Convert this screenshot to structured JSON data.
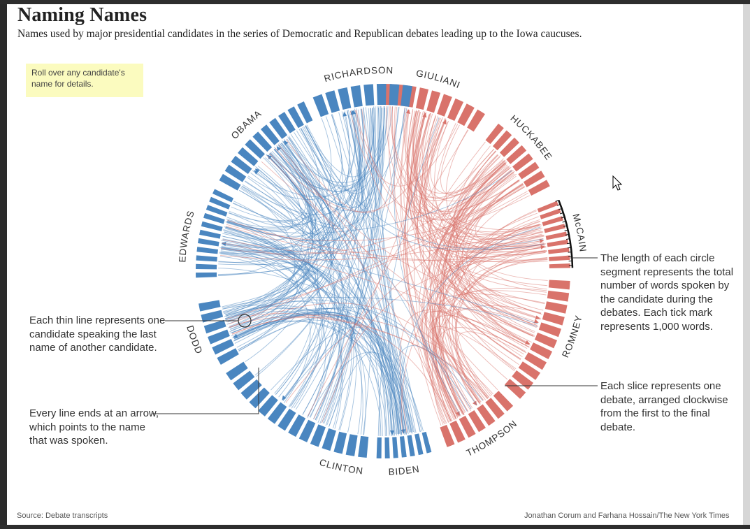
{
  "header": {
    "title": "Naming Names",
    "subtitle": "Names used by major presidential candidates in the series of Democratic and Republican debates leading up to the Iowa caucuses."
  },
  "hint": "Roll over any candidate's name for details.",
  "notes": {
    "segment_length": "The length of each circle segment represents the total number of words spoken by the candidate during the debates. Each tick mark represents 1,000 words.",
    "slice": "Each slice represents one debate, arranged clockwise from the first to the final debate.",
    "thin_line": "Each thin line represents one candidate speaking the last name of another candidate.",
    "arrow": "Every line ends at an arrow, which points to the name that was spoken."
  },
  "footer": {
    "source": "Source: Debate transcripts",
    "credit": "Jonathan Corum and Farhana Hossain/The New York Times"
  },
  "colors": {
    "democrat": "#4a86c0",
    "republican": "#d9736b",
    "hint_bg": "#fbfbbf"
  },
  "chart_data": {
    "type": "chord",
    "candidates": [
      {
        "name": "GIULIANI",
        "party": "republican",
        "slices": 9
      },
      {
        "name": "HUCKABEE",
        "party": "republican",
        "slices": 8
      },
      {
        "name": "McCAIN",
        "party": "republican",
        "slices": 9
      },
      {
        "name": "ROMNEY",
        "party": "republican",
        "slices": 11
      },
      {
        "name": "THOMPSON",
        "party": "republican",
        "slices": 7
      },
      {
        "name": "BIDEN",
        "party": "democrat",
        "slices": 7
      },
      {
        "name": "CLINTON",
        "party": "democrat",
        "slices": 14
      },
      {
        "name": "DODD",
        "party": "democrat",
        "slices": 6
      },
      {
        "name": "EDWARDS",
        "party": "democrat",
        "slices": 11
      },
      {
        "name": "OBAMA",
        "party": "democrat",
        "slices": 11
      },
      {
        "name": "RICHARDSON",
        "party": "democrat",
        "slices": 8
      }
    ],
    "highlighted": "McCAIN"
  }
}
